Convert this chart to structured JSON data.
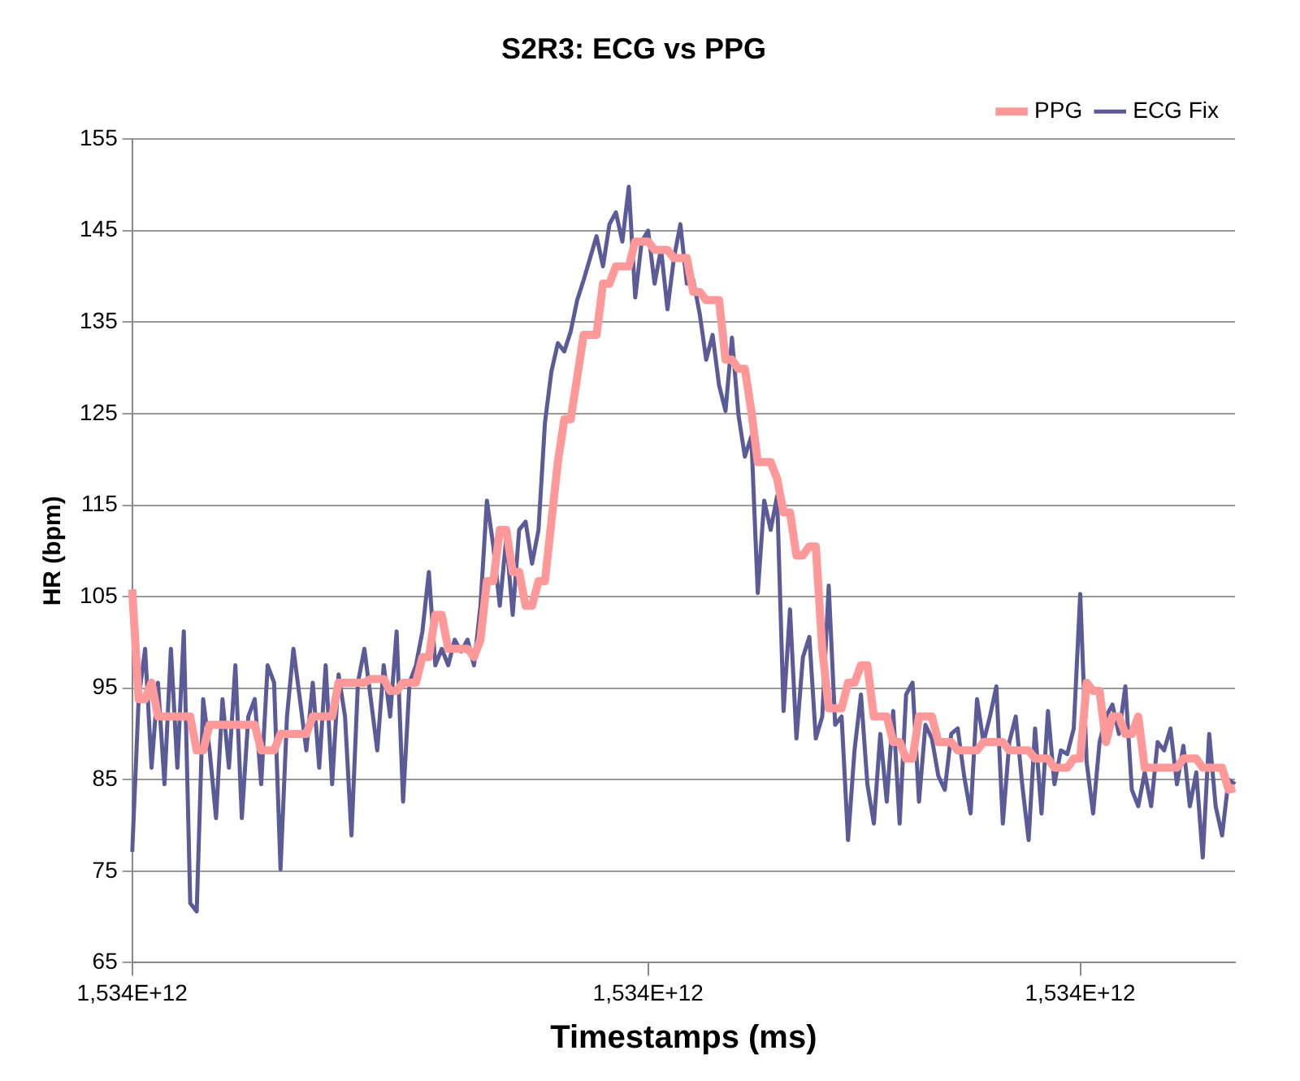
{
  "chart_data": {
    "type": "line",
    "title": "S2R3: ECG vs PPG",
    "xlabel": "Timestamps (ms)",
    "ylabel": "HR (bpm)",
    "categories": [
      "1,534E+12",
      null,
      null,
      null,
      null,
      null,
      null,
      null,
      null,
      null,
      null,
      null,
      null,
      null,
      null,
      null,
      null,
      null,
      null,
      null,
      null,
      null,
      null,
      null,
      null,
      null,
      null,
      null,
      null,
      null,
      null,
      null,
      null,
      null,
      null,
      null,
      null,
      null,
      null,
      null,
      null,
      null,
      null,
      null,
      null,
      null,
      null,
      null,
      null,
      null,
      null,
      null,
      null,
      null,
      null,
      null,
      null,
      null,
      null,
      null,
      null,
      null,
      null,
      null,
      null,
      null,
      null,
      null,
      null,
      null,
      null,
      null,
      null,
      null,
      null,
      null,
      null,
      null,
      null,
      null,
      "1,534E+12",
      null,
      null,
      null,
      null,
      null,
      null,
      null,
      null,
      null,
      null,
      null,
      null,
      null,
      null,
      null,
      null,
      null,
      null,
      null,
      null,
      null,
      null,
      null,
      null,
      null,
      null,
      null,
      null,
      null,
      null,
      null,
      null,
      null,
      null,
      null,
      null,
      null,
      null,
      null,
      null,
      null,
      null,
      null,
      null,
      null,
      null,
      null,
      null,
      null,
      null,
      null,
      null,
      null,
      null,
      null,
      null,
      null,
      null,
      null,
      null,
      null,
      null,
      null,
      null,
      null,
      null,
      "1,534E+12",
      null,
      null,
      null,
      null,
      null,
      null,
      null,
      null,
      null,
      null,
      null,
      null,
      null,
      null,
      null,
      null,
      null,
      null,
      null,
      null,
      null,
      null,
      null,
      null
    ],
    "ylim": [
      65,
      155
    ],
    "yticks": [
      65,
      75,
      85,
      95,
      105,
      115,
      125,
      135,
      145,
      155
    ],
    "grid": "y",
    "legend": "top right",
    "marker": "none",
    "line_style": "solid",
    "series": [
      {
        "name": "PPG",
        "color": "#ff9999",
        "values": [
          105.8,
          93.8,
          93.8,
          95.6,
          91.9,
          91.9,
          91.9,
          91.9,
          91.9,
          91.9,
          88.2,
          88.2,
          91.0,
          91.0,
          91.0,
          91.0,
          91.0,
          91.0,
          91.0,
          91.0,
          88.2,
          88.2,
          88.2,
          90.0,
          90.0,
          90.0,
          90.0,
          90.0,
          91.9,
          91.9,
          91.9,
          91.9,
          95.6,
          95.6,
          95.6,
          95.6,
          95.6,
          96.0,
          96.0,
          96.0,
          94.7,
          94.7,
          95.6,
          95.6,
          95.6,
          98.4,
          98.4,
          103.0,
          103.0,
          99.3,
          99.3,
          99.3,
          99.3,
          98.4,
          100.3,
          106.7,
          106.7,
          112.3,
          112.3,
          107.7,
          107.7,
          104.0,
          104.0,
          106.7,
          106.7,
          113.2,
          119.7,
          124.4,
          124.4,
          129.0,
          133.6,
          133.6,
          133.6,
          139.2,
          139.2,
          141.1,
          141.1,
          141.1,
          143.8,
          143.8,
          143.8,
          142.9,
          142.9,
          142.9,
          142.0,
          142.0,
          142.0,
          138.3,
          138.3,
          137.4,
          137.4,
          137.4,
          130.9,
          130.9,
          129.9,
          129.9,
          125.3,
          119.7,
          119.7,
          119.7,
          117.9,
          114.2,
          114.2,
          109.5,
          109.5,
          110.5,
          110.5,
          99.3,
          92.8,
          92.8,
          92.8,
          95.6,
          95.6,
          97.5,
          97.5,
          91.9,
          91.9,
          91.9,
          89.1,
          89.1,
          87.3,
          87.3,
          91.9,
          91.9,
          91.9,
          89.1,
          89.1,
          89.1,
          88.2,
          88.2,
          88.2,
          88.2,
          89.1,
          89.1,
          89.1,
          89.1,
          88.2,
          88.2,
          88.2,
          88.2,
          87.3,
          87.3,
          87.3,
          86.3,
          86.3,
          86.3,
          87.3,
          87.3,
          95.6,
          94.7,
          94.7,
          89.1,
          91.9,
          91.9,
          90.0,
          90.0,
          91.9,
          86.3,
          86.3,
          86.3,
          86.3,
          86.3,
          86.3,
          87.3,
          87.3,
          87.3,
          86.3,
          86.3,
          86.3,
          86.3,
          83.9,
          84.1
        ]
      },
      {
        "name": "ECG Fix",
        "color": "#5b5b97",
        "values": [
          77.1,
          93.8,
          99.3,
          86.3,
          95.6,
          84.5,
          99.3,
          86.3,
          101.2,
          71.5,
          70.6,
          93.8,
          88.2,
          80.8,
          93.8,
          86.3,
          97.5,
          80.8,
          91.9,
          93.8,
          84.5,
          97.5,
          95.6,
          75.2,
          91.9,
          99.3,
          93.8,
          88.2,
          95.6,
          86.3,
          97.5,
          84.5,
          96.5,
          91.9,
          78.9,
          95.6,
          99.3,
          93.8,
          88.2,
          97.5,
          91.9,
          101.2,
          82.6,
          95.6,
          97.5,
          101.2,
          107.7,
          97.5,
          99.3,
          97.5,
          100.3,
          99.0,
          100.3,
          97.5,
          104.0,
          115.5,
          110.5,
          104.0,
          111.4,
          103.0,
          112.3,
          113.2,
          108.6,
          112.3,
          124.0,
          129.6,
          132.7,
          131.8,
          134.0,
          137.4,
          139.6,
          142.0,
          144.4,
          141.1,
          145.7,
          147.0,
          143.8,
          149.8,
          137.7,
          143.8,
          145.0,
          139.2,
          143.0,
          136.4,
          142.0,
          145.7,
          139.2,
          139.6,
          135.9,
          130.9,
          133.6,
          128.1,
          125.3,
          133.3,
          124.9,
          120.3,
          122.5,
          105.4,
          115.5,
          112.3,
          116.0,
          92.5,
          103.6,
          89.5,
          98.4,
          100.6,
          89.5,
          91.9,
          106.2,
          91.0,
          91.9,
          78.4,
          88.2,
          94.3,
          84.5,
          80.2,
          90.0,
          82.6,
          92.5,
          80.2,
          94.3,
          95.6,
          82.6,
          91.0,
          89.5,
          85.4,
          83.9,
          90.0,
          90.6,
          85.4,
          81.3,
          93.8,
          89.1,
          91.9,
          95.2,
          80.2,
          89.1,
          91.9,
          84.5,
          78.4,
          90.6,
          81.3,
          92.5,
          84.5,
          88.2,
          87.8,
          90.6,
          105.3,
          86.9,
          81.3,
          89.1,
          91.9,
          93.2,
          90.0,
          95.2,
          83.9,
          82.1,
          85.8,
          82.1,
          89.1,
          88.2,
          90.6,
          84.5,
          88.7,
          82.1,
          85.8,
          76.5,
          90.0,
          82.1,
          78.9,
          85.0,
          84.5
        ]
      }
    ]
  }
}
